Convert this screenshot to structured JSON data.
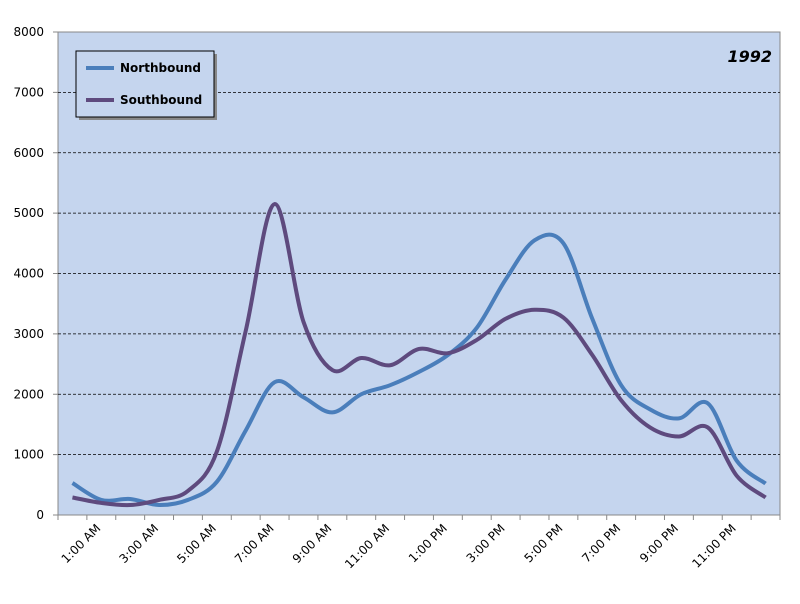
{
  "chart_data": {
    "type": "line",
    "title": "1992",
    "categories": [
      null,
      "1:00 AM",
      null,
      "3:00 AM",
      null,
      "5:00 AM",
      null,
      "7:00 AM",
      null,
      "9:00 AM",
      null,
      "11:00 AM",
      null,
      "1:00 PM",
      null,
      "3:00 PM",
      null,
      "5:00 PM",
      null,
      "7:00 PM",
      null,
      "9:00 PM",
      null,
      "11:00 PM",
      null
    ],
    "series": [
      {
        "name": "Northbound",
        "color": "#4a7ebb",
        "values": [
          530,
          250,
          265,
          165,
          250,
          550,
          1400,
          2200,
          1950,
          1700,
          2000,
          2150,
          2370,
          2650,
          3100,
          3900,
          4550,
          4500,
          3250,
          2150,
          1750,
          1600,
          1850,
          900,
          520
        ]
      },
      {
        "name": "Southbound",
        "color": "#5e4a7e",
        "values": [
          290,
          200,
          165,
          250,
          400,
          1050,
          3050,
          5150,
          3200,
          2400,
          2600,
          2480,
          2750,
          2680,
          2900,
          3250,
          3400,
          3270,
          2650,
          1900,
          1450,
          1300,
          1450,
          650,
          290
        ]
      }
    ],
    "ylim": [
      0,
      8000
    ],
    "yticks": [
      0,
      1000,
      2000,
      3000,
      4000,
      5000,
      6000,
      7000,
      8000
    ],
    "grid": true,
    "legend": "top-left",
    "background": "#c5d5ee"
  }
}
